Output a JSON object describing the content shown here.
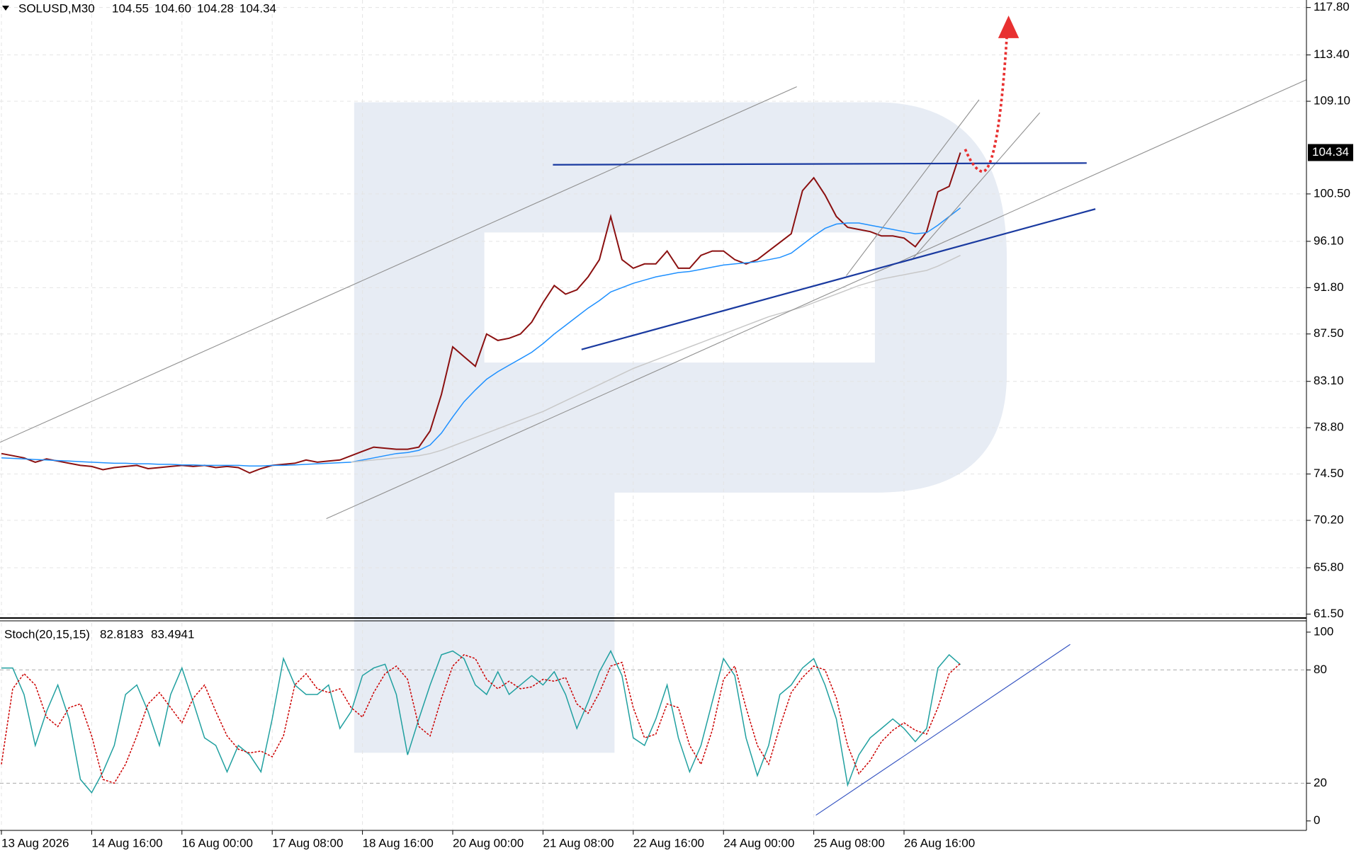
{
  "chart_data": [
    {
      "type": "line",
      "title": "SOLUSD,M30",
      "ohlc": [
        104.55,
        104.6,
        104.28,
        104.34
      ],
      "ohlc_labels": [
        "104.55",
        "104.60",
        "104.28",
        "104.34"
      ],
      "ylim": [
        61.2,
        118.5
      ],
      "yticks": [
        {
          "value": 117.8,
          "label": "117.80"
        },
        {
          "value": 113.4,
          "label": "113.40"
        },
        {
          "value": 109.1,
          "label": "109.10"
        },
        {
          "value": 100.5,
          "label": "100.50"
        },
        {
          "value": 96.1,
          "label": "96.10"
        },
        {
          "value": 91.8,
          "label": "91.80"
        },
        {
          "value": 87.5,
          "label": "87.50"
        },
        {
          "value": 83.1,
          "label": "83.10"
        },
        {
          "value": 78.8,
          "label": "78.80"
        },
        {
          "value": 74.5,
          "label": "74.50"
        },
        {
          "value": 70.2,
          "label": "70.20"
        },
        {
          "value": 65.8,
          "label": "65.80"
        },
        {
          "value": 61.5,
          "label": "61.50"
        }
      ],
      "grid": true,
      "series": [
        {
          "color": "#8b1010",
          "values": [
            76.4,
            76.2,
            76.0,
            75.6,
            75.9,
            75.7,
            75.5,
            75.3,
            75.2,
            74.9,
            75.1,
            75.2,
            75.3,
            75.0,
            75.1,
            75.2,
            75.3,
            75.2,
            75.3,
            75.1,
            75.2,
            75.1,
            74.6,
            75.0,
            75.3,
            75.4,
            75.5,
            75.8,
            75.6,
            75.7,
            75.8,
            76.2,
            76.6,
            77.0,
            76.9,
            76.8,
            76.8,
            77.0,
            78.5,
            81.9,
            86.3,
            85.4,
            84.5,
            87.5,
            86.9,
            87.1,
            87.5,
            88.6,
            90.4,
            92.0,
            91.2,
            91.6,
            92.8,
            94.4,
            98.4,
            94.4,
            93.6,
            94.0,
            94.0,
            95.2,
            93.6,
            93.6,
            94.8,
            95.2,
            95.2,
            94.4,
            94.0,
            94.4,
            95.2,
            96.0,
            96.8,
            100.8,
            102.0,
            100.4,
            98.4,
            97.4,
            97.2,
            97.0,
            96.6,
            96.6,
            96.4,
            95.6,
            97.0,
            100.7,
            101.2,
            104.34
          ]
        },
        {
          "color": "#1e90ff",
          "values": [
            76.0,
            75.95,
            75.9,
            75.85,
            75.8,
            75.75,
            75.7,
            75.65,
            75.6,
            75.55,
            75.5,
            75.5,
            75.45,
            75.45,
            75.4,
            75.4,
            75.35,
            75.35,
            75.3,
            75.3,
            75.3,
            75.3,
            75.25,
            75.25,
            75.3,
            75.3,
            75.35,
            75.4,
            75.45,
            75.5,
            75.55,
            75.6,
            75.8,
            76.0,
            76.2,
            76.4,
            76.5,
            76.7,
            77.2,
            78.3,
            79.8,
            81.2,
            82.3,
            83.3,
            84.0,
            84.6,
            85.2,
            85.8,
            86.6,
            87.5,
            88.3,
            89.1,
            89.9,
            90.6,
            91.4,
            91.8,
            92.2,
            92.5,
            92.8,
            93.0,
            93.2,
            93.3,
            93.5,
            93.7,
            93.9,
            94.0,
            94.1,
            94.2,
            94.4,
            94.6,
            95.0,
            95.8,
            96.6,
            97.3,
            97.7,
            97.8,
            97.8,
            97.6,
            97.4,
            97.2,
            97.0,
            96.8,
            96.9,
            97.6,
            98.4,
            99.2
          ]
        },
        {
          "color": "#c8c8c8",
          "values": [
            null,
            null,
            null,
            null,
            null,
            null,
            null,
            null,
            null,
            null,
            null,
            null,
            null,
            null,
            null,
            null,
            null,
            null,
            null,
            null,
            null,
            null,
            null,
            null,
            null,
            null,
            null,
            null,
            null,
            null,
            null,
            75.6,
            75.7,
            75.8,
            75.9,
            76.0,
            76.1,
            76.2,
            76.4,
            76.7,
            77.1,
            77.5,
            77.9,
            78.3,
            78.7,
            79.1,
            79.5,
            79.9,
            80.3,
            80.8,
            81.3,
            81.8,
            82.3,
            82.8,
            83.3,
            83.8,
            84.3,
            84.7,
            85.1,
            85.5,
            85.9,
            86.3,
            86.7,
            87.1,
            87.5,
            87.9,
            88.3,
            88.7,
            89.1,
            89.4,
            89.7,
            90.0,
            90.4,
            90.8,
            91.2,
            91.6,
            92.0,
            92.3,
            92.6,
            92.8,
            93.0,
            93.2,
            93.4,
            93.8,
            94.3,
            94.8
          ]
        }
      ]
    },
    {
      "type": "line",
      "title": "Stoch(20,15,15)",
      "last_values": [
        82.8183,
        83.4941
      ],
      "ylim": [
        -5,
        105.6
      ],
      "yticks": [
        100,
        80,
        20,
        0
      ],
      "levels": [
        80,
        20
      ],
      "categories": [
        "13 Aug 2026",
        null,
        null,
        null,
        null,
        null,
        null,
        null,
        "14 Aug 16:00",
        null,
        null,
        null,
        null,
        null,
        null,
        null,
        "16 Aug 00:00",
        null,
        null,
        null,
        null,
        null,
        null,
        null,
        "17 Aug 08:00",
        null,
        null,
        null,
        null,
        null,
        null,
        null,
        "18 Aug 16:00",
        null,
        null,
        null,
        null,
        null,
        null,
        null,
        "20 Aug 00:00",
        null,
        null,
        null,
        null,
        null,
        null,
        null,
        "21 Aug 08:00",
        null,
        null,
        null,
        null,
        null,
        null,
        null,
        "22 Aug 16:00",
        null,
        null,
        null,
        null,
        null,
        null,
        null,
        "24 Aug 00:00",
        null,
        null,
        null,
        null,
        null,
        null,
        null,
        "25 Aug 08:00",
        null,
        null,
        null,
        null,
        null,
        null,
        null,
        "26 Aug 16:00",
        null,
        null,
        null,
        null,
        null
      ],
      "series": [
        {
          "color": "#20a0a0",
          "values": [
            81,
            81,
            67,
            40,
            58,
            72,
            54,
            22,
            15,
            26,
            40,
            67,
            72,
            58,
            40,
            67,
            81,
            63,
            44,
            40,
            26,
            40,
            35,
            26,
            54,
            86,
            72,
            67,
            67,
            72,
            49,
            58,
            77,
            81,
            83,
            67,
            35,
            54,
            72,
            88,
            90,
            86,
            72,
            67,
            79,
            67,
            72,
            77,
            72,
            79,
            67,
            49,
            63,
            79,
            90,
            77,
            44,
            40,
            54,
            72,
            44,
            26,
            40,
            63,
            86,
            77,
            44,
            24,
            40,
            67,
            72,
            81,
            86,
            72,
            54,
            19,
            35,
            44,
            49,
            54,
            49,
            42,
            49,
            81,
            88,
            82.8183
          ]
        },
        {
          "color": "#cc0000",
          "dashed": true,
          "values": [
            30,
            70,
            78,
            72,
            55,
            50,
            60,
            62,
            45,
            22,
            20,
            30,
            45,
            62,
            68,
            60,
            52,
            65,
            72,
            58,
            45,
            38,
            36,
            37,
            34,
            45,
            72,
            78,
            70,
            68,
            70,
            60,
            55,
            68,
            78,
            82,
            75,
            50,
            45,
            65,
            82,
            88,
            86,
            75,
            70,
            74,
            70,
            71,
            75,
            74,
            76,
            62,
            57,
            68,
            82,
            84,
            60,
            44,
            46,
            62,
            60,
            40,
            30,
            48,
            75,
            82,
            60,
            40,
            30,
            50,
            68,
            76,
            82,
            80,
            65,
            40,
            25,
            32,
            42,
            48,
            52,
            48,
            46,
            60,
            78,
            83.4941
          ]
        }
      ]
    }
  ]
}
